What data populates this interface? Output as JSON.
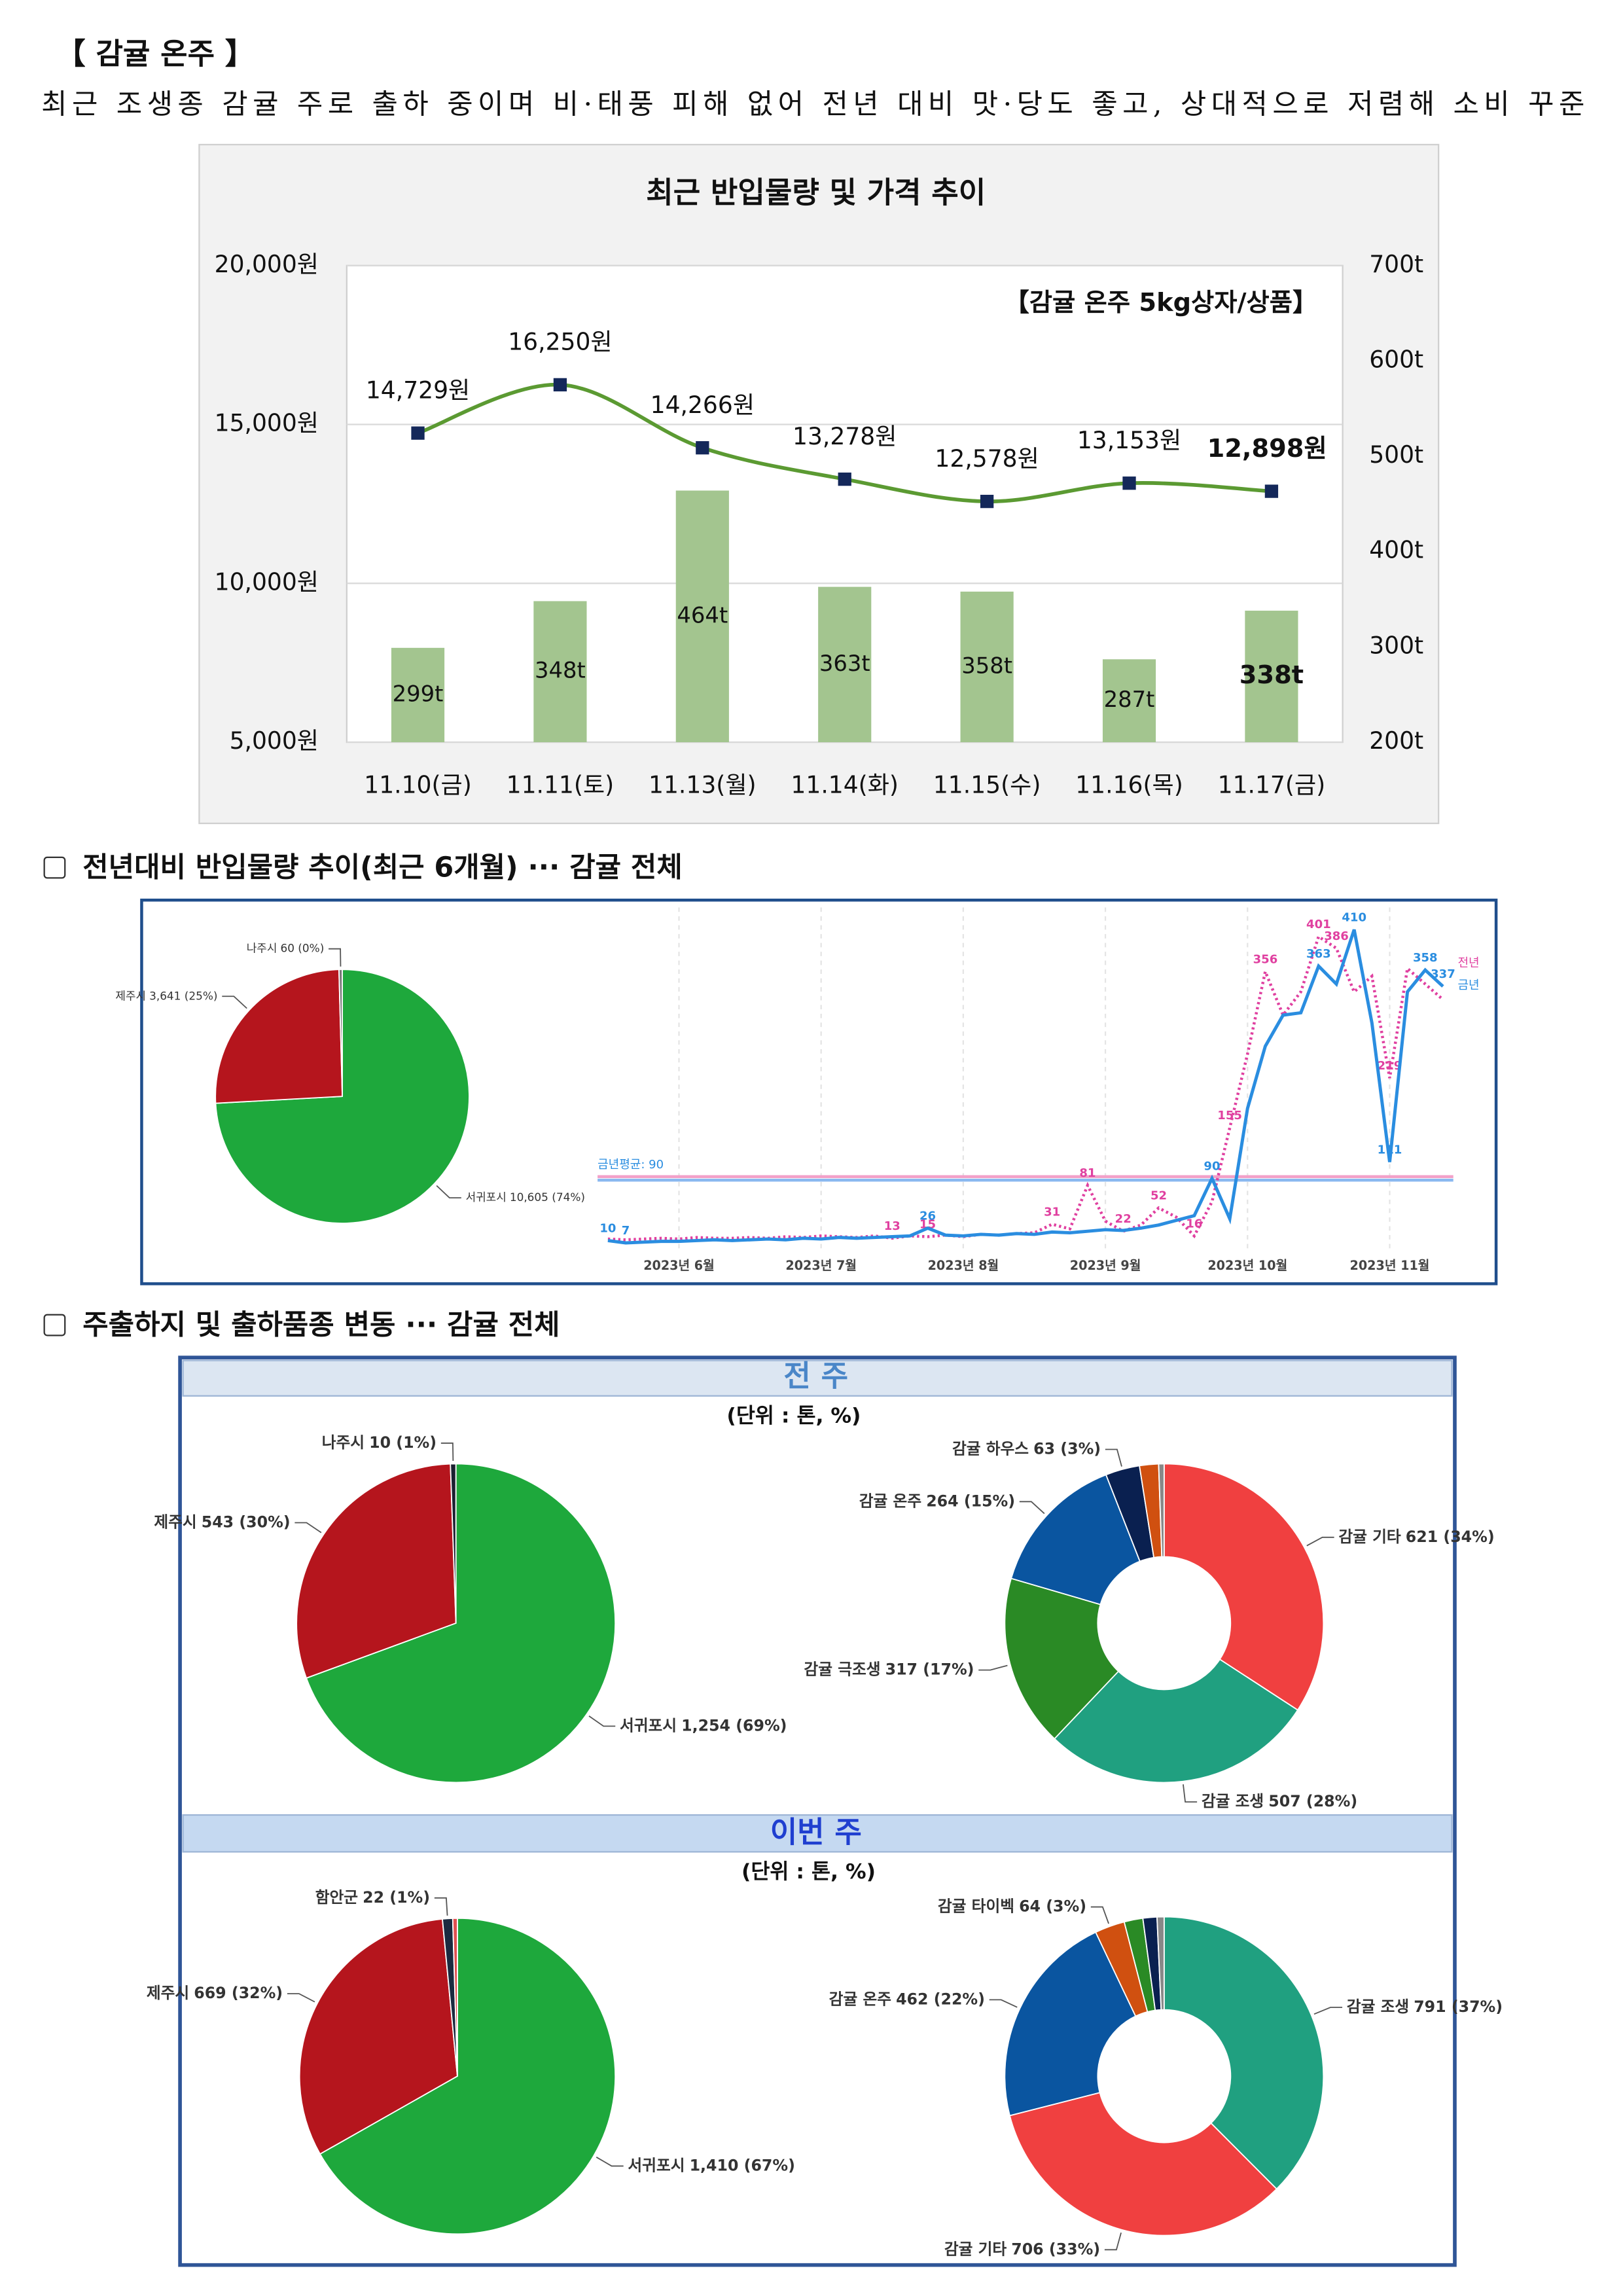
{
  "header": {
    "title": "【 감귤 온주 】",
    "subtitle": "최근 조생종 감귤 주로 출하 중이며 비·태풍 피해 없어 전년 대비 맛·당도 좋고, 상대적으로 저렴해 소비 꾸준"
  },
  "sections": [
    {
      "heading": "전년대비 반입물량 추이(최근 6개월) ··· 감귤 전체"
    },
    {
      "heading": "주출하지 및 출하품종 변동 ··· 감귤 전체"
    }
  ],
  "panels": [
    {
      "title": "전 주",
      "unit": "(단위 : 톤, %)"
    },
    {
      "title": "이번 주",
      "unit": "(단위 : 톤, %)"
    }
  ],
  "chart_data": [
    {
      "type": "bar",
      "title": "최근 반입물량 및 가격 추이",
      "annotation": "【감귤 온주 5kg상자/상품】",
      "categories": [
        "11.10(금)",
        "11.11(토)",
        "11.13(월)",
        "11.14(화)",
        "11.15(수)",
        "11.16(목)",
        "11.17(금)"
      ],
      "series": [
        {
          "type": "bar",
          "axis": "y2",
          "color": "#a3c58f",
          "values": [
            299,
            348,
            464,
            363,
            358,
            287,
            338
          ],
          "value_labels": [
            "299t",
            "348t",
            "464t",
            "363t",
            "358t",
            "287t",
            "338t"
          ]
        },
        {
          "type": "line",
          "color": "#5b9a32",
          "marker_color": "#14285a",
          "values": [
            14729,
            16250,
            14266,
            13278,
            12578,
            13153,
            12898
          ],
          "value_labels": [
            "14,729원",
            "16,250원",
            "14,266원",
            "13,278원",
            "12,578원",
            "13,153원",
            "12,898원"
          ]
        }
      ],
      "ylim": [
        5000,
        20000
      ],
      "yticks": [
        {
          "value": 5000,
          "label": "5,000원"
        },
        {
          "value": 10000,
          "label": "10,000원"
        },
        {
          "value": 15000,
          "label": "15,000원"
        },
        {
          "value": 20000,
          "label": "20,000원"
        }
      ],
      "y2lim": [
        200,
        700
      ],
      "y2ticks": [
        {
          "value": 200,
          "label": "200t"
        },
        {
          "value": 300,
          "label": "300t"
        },
        {
          "value": 400,
          "label": "400t"
        },
        {
          "value": 500,
          "label": "500t"
        },
        {
          "value": 600,
          "label": "600t"
        },
        {
          "value": 700,
          "label": "700t"
        }
      ],
      "grid": true
    },
    {
      "type": "pie",
      "categories": [
        "서귀포시",
        "제주시",
        "나주시"
      ],
      "values": [
        10605,
        3641,
        60
      ],
      "value_labels": [
        "10,605 (74%)",
        "3,641 (25%)",
        "60 (0%)"
      ],
      "colors": [
        "#1ea83c",
        "#b5151d",
        "#777777"
      ]
    },
    {
      "type": "line",
      "categories": [
        null,
        null,
        null,
        null,
        "2023년 6월",
        null,
        null,
        null,
        null,
        null,
        null,
        null,
        "2023년 7월",
        null,
        null,
        null,
        null,
        null,
        null,
        null,
        "2023년 8월",
        null,
        null,
        null,
        null,
        null,
        null,
        null,
        "2023년 9월",
        null,
        null,
        null,
        null,
        null,
        null,
        null,
        "2023년 10월",
        null,
        null,
        null,
        null,
        null,
        null,
        null,
        "2023년 11월",
        null,
        null,
        null
      ],
      "series": [
        {
          "name": "전년",
          "color": "#e040a0",
          "style": "dotted",
          "values": [
            12,
            11,
            12,
            13,
            12,
            14,
            13,
            13,
            14,
            13,
            15,
            14,
            16,
            15,
            14,
            16,
            13,
            16,
            15,
            17,
            15,
            18,
            17,
            19,
            20,
            31,
            25,
            81,
            35,
            22,
            30,
            52,
            40,
            16,
            60,
            155,
            250,
            356,
            300,
            330,
            401,
            386,
            330,
            350,
            219,
            360,
            340,
            320
          ],
          "value_labels": [
            null,
            null,
            null,
            null,
            null,
            null,
            null,
            null,
            null,
            null,
            null,
            null,
            null,
            null,
            null,
            null,
            "13",
            null,
            "15",
            null,
            null,
            null,
            null,
            null,
            null,
            "31",
            null,
            "81",
            null,
            "22",
            null,
            "52",
            null,
            "16",
            null,
            "155",
            null,
            "356",
            null,
            null,
            "401",
            "386",
            null,
            null,
            "219",
            null,
            null,
            null
          ]
        },
        {
          "name": "금년",
          "color": "#2a8de0",
          "style": "solid",
          "values": [
            10,
            7,
            8,
            9,
            9,
            10,
            11,
            10,
            11,
            12,
            11,
            13,
            12,
            14,
            13,
            14,
            15,
            16,
            26,
            17,
            16,
            18,
            17,
            19,
            18,
            21,
            20,
            22,
            24,
            23,
            26,
            30,
            36,
            42,
            90,
            38,
            180,
            260,
            300,
            303,
            363,
            340,
            410,
            290,
            111,
            330,
            358,
            337
          ],
          "value_labels": [
            "10",
            "7",
            null,
            null,
            null,
            null,
            null,
            null,
            null,
            null,
            null,
            null,
            null,
            null,
            null,
            null,
            null,
            null,
            "26",
            null,
            null,
            null,
            null,
            null,
            null,
            null,
            null,
            null,
            null,
            null,
            null,
            null,
            null,
            null,
            "90",
            null,
            null,
            null,
            null,
            null,
            "363",
            null,
            "410",
            null,
            "111",
            null,
            "358",
            "337"
          ]
        }
      ],
      "average": {
        "value": 90,
        "label": "금년평균: 90"
      }
    },
    {
      "type": "pie",
      "categories": [
        "서귀포시",
        "제주시",
        "나주시"
      ],
      "values": [
        1254,
        543,
        10
      ],
      "value_labels": [
        "1,254 (69%)",
        "543 (30%)",
        "10 (1%)"
      ],
      "colors": [
        "#1ea83c",
        "#b5151d",
        "#1a2030"
      ]
    },
    {
      "type": "donut",
      "categories": [
        "감귤 기타",
        "감귤 조생",
        "감귤 극조생",
        "감귤 온주",
        "감귤 하우스",
        null,
        null
      ],
      "values": [
        621,
        507,
        317,
        264,
        63,
        35,
        10
      ],
      "value_labels": [
        "621 (34%)",
        "507 (28%)",
        "317 (17%)",
        "264 (15%)",
        "63 (3%)",
        null,
        null
      ],
      "colors": [
        "#f04040",
        "#20a080",
        "#2a8a25",
        "#0a55a0",
        "#0a2050",
        "#d05010",
        "#888888"
      ]
    },
    {
      "type": "pie",
      "categories": [
        "서귀포시",
        "제주시",
        "함안군",
        null
      ],
      "values": [
        1410,
        669,
        22,
        10
      ],
      "value_labels": [
        "1,410 (67%)",
        "669 (32%)",
        "22 (1%)",
        null
      ],
      "colors": [
        "#1ea83c",
        "#b5151d",
        "#1a2a40",
        "#e05050"
      ]
    },
    {
      "type": "donut",
      "categories": [
        "감귤 조생",
        "감귤 기타",
        "감귤 온주",
        "감귤 타이벡",
        null,
        null,
        null
      ],
      "values": [
        791,
        706,
        462,
        64,
        40,
        30,
        15
      ],
      "value_labels": [
        "791 (37%)",
        "706 (33%)",
        "462 (22%)",
        "64 (3%)",
        null,
        null,
        null
      ],
      "colors": [
        "#20a080",
        "#f04040",
        "#0a55a0",
        "#d05010",
        "#2a8a25",
        "#0a2050",
        "#888888"
      ]
    }
  ]
}
